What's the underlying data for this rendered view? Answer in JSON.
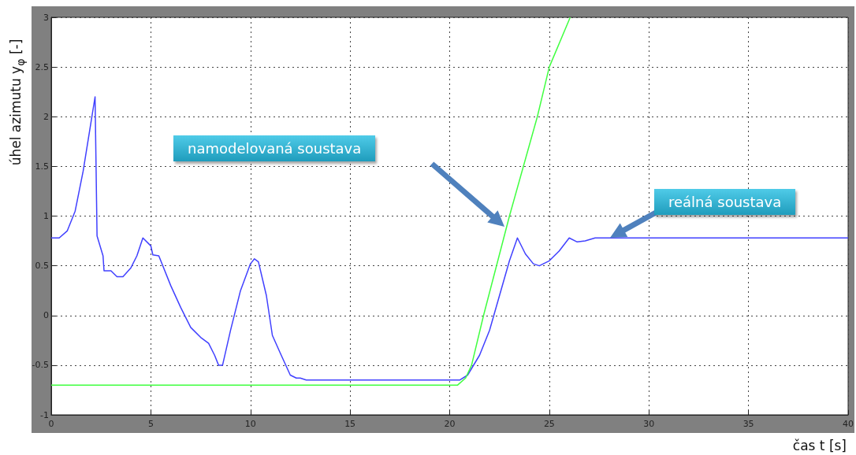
{
  "chart_data": {
    "type": "line",
    "xlabel": "čas t [s]",
    "ylabel": "úhel azimutu y$_{φ}$ [-]",
    "xlim": [
      0,
      40
    ],
    "xticks": [
      0,
      5,
      10,
      15,
      20,
      25,
      30,
      35,
      40
    ],
    "ylim": [
      -1,
      3
    ],
    "yticks": [
      -1,
      -0.5,
      0,
      0.5,
      1,
      1.5,
      2,
      2.5,
      3
    ],
    "grid": true,
    "marker": "none",
    "line_style": "solid",
    "series": [
      {
        "color": "#4040ff",
        "x": [
          0,
          0.4,
          0.8,
          1.2,
          1.6,
          2.0,
          2.2,
          2.25,
          2.3,
          2.6,
          2.65,
          3.0,
          3.3,
          3.6,
          4.0,
          4.3,
          4.6,
          5.0,
          5.1,
          5.4,
          6.0,
          6.5,
          7.0,
          7.5,
          7.9,
          8.2,
          8.4,
          8.6,
          9.0,
          9.5,
          10.0,
          10.2,
          10.4,
          10.8,
          11.1,
          11.5,
          12.0,
          12.3,
          12.5,
          12.8,
          14,
          17,
          20.5,
          20.9,
          21.5,
          22.0,
          22.5,
          23.0,
          23.4,
          23.8,
          24.2,
          24.5,
          25.0,
          25.5,
          26.0,
          26.4,
          26.8,
          27.3,
          40
        ],
        "values": [
          0.78,
          0.78,
          0.85,
          1.05,
          1.45,
          1.95,
          2.2,
          1.5,
          0.8,
          0.6,
          0.45,
          0.45,
          0.39,
          0.39,
          0.48,
          0.6,
          0.78,
          0.7,
          0.61,
          0.6,
          0.3,
          0.08,
          -0.12,
          -0.22,
          -0.28,
          -0.4,
          -0.5,
          -0.5,
          -0.15,
          0.25,
          0.52,
          0.57,
          0.54,
          0.2,
          -0.2,
          -0.38,
          -0.6,
          -0.63,
          -0.63,
          -0.65,
          -0.65,
          -0.65,
          -0.65,
          -0.6,
          -0.4,
          -0.15,
          0.2,
          0.55,
          0.78,
          0.62,
          0.52,
          0.5,
          0.55,
          0.65,
          0.78,
          0.74,
          0.75,
          0.78,
          0.78
        ]
      },
      {
        "color": "#40ff40",
        "x": [
          0,
          20.4,
          20.8,
          21.1,
          21.7,
          23.0,
          24.4,
          25.0,
          26.05
        ],
        "values": [
          -0.7,
          -0.7,
          -0.63,
          -0.5,
          0,
          1,
          2,
          2.5,
          3
        ]
      }
    ],
    "annotations": [
      "namodelovaná soustava",
      "reálná soustava"
    ]
  }
}
